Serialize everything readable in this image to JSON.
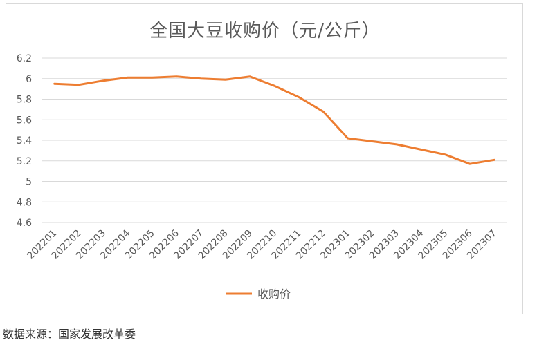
{
  "chart_data": {
    "type": "line",
    "title": "全国大豆收购价（元/公斤）",
    "xlabel": "",
    "ylabel": "",
    "categories": [
      "202201",
      "202202",
      "202203",
      "202204",
      "202205",
      "202206",
      "202207",
      "202208",
      "202209",
      "202210",
      "202211",
      "202212",
      "202301",
      "202302",
      "202303",
      "202304",
      "202305",
      "202306",
      "202307"
    ],
    "series": [
      {
        "name": "收购价",
        "values": [
          5.95,
          5.94,
          5.98,
          6.01,
          6.01,
          6.02,
          6.0,
          5.99,
          6.02,
          5.93,
          5.82,
          5.68,
          5.42,
          5.39,
          5.36,
          5.31,
          5.26,
          5.17,
          5.21
        ],
        "color": "#ED7D31"
      }
    ],
    "ylim": [
      4.6,
      6.2
    ],
    "yticks": [
      "4.6",
      "4.8",
      "5",
      "5.2",
      "5.4",
      "5.6",
      "5.8",
      "6",
      "6.2"
    ],
    "grid": true,
    "legend": "bottom"
  },
  "source": "数据来源：国家发展改革委"
}
